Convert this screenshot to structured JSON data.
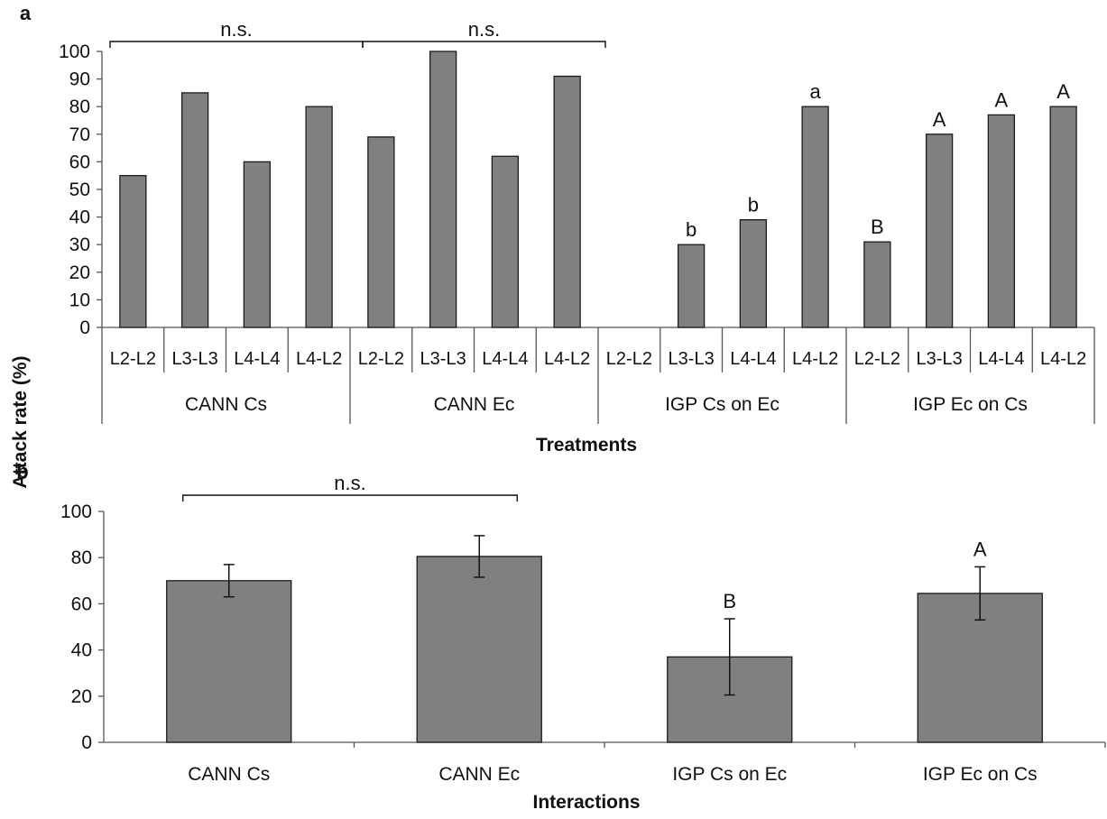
{
  "colors": {
    "bar": "#808080",
    "bar_stroke": "#1a1a1a",
    "axis": "#555555",
    "text": "#111111"
  },
  "shared_ylabel": "Attack rate (%)",
  "chart_data": [
    {
      "panel": "a",
      "type": "bar",
      "xlabel": "Treatments",
      "ylabel": "Attack rate (%)",
      "ylim": [
        0,
        100
      ],
      "yticks": [
        0,
        10,
        20,
        30,
        40,
        50,
        60,
        70,
        80,
        90,
        100
      ],
      "grid": false,
      "groups": [
        {
          "name": "CANN Cs",
          "categories": [
            "L2-L2",
            "L3-L3",
            "L4-L4",
            "L4-L2"
          ],
          "values": [
            55,
            85,
            60,
            80
          ],
          "letters": [
            "",
            "",
            "",
            ""
          ]
        },
        {
          "name": "CANN Ec",
          "categories": [
            "L2-L2",
            "L3-L3",
            "L4-L4",
            "L4-L2"
          ],
          "values": [
            69,
            100,
            62,
            91
          ],
          "letters": [
            "",
            "",
            "",
            ""
          ]
        },
        {
          "name": "IGP Cs on Ec",
          "categories": [
            "L2-L2",
            "L3-L3",
            "L4-L4",
            "L4-L2"
          ],
          "values": [
            0,
            30,
            39,
            80
          ],
          "letters": [
            "",
            "b",
            "b",
            "a"
          ]
        },
        {
          "name": "IGP Ec on Cs",
          "categories": [
            "L2-L2",
            "L3-L3",
            "L4-L4",
            "L4-L2"
          ],
          "values": [
            31,
            70,
            77,
            80
          ],
          "letters": [
            "B",
            "A",
            "A",
            "A"
          ]
        }
      ],
      "brackets": [
        {
          "from_group": 0,
          "to_group": 0,
          "label": "n.s."
        },
        {
          "from_group": 1,
          "to_group": 1,
          "label": "n.s."
        }
      ]
    },
    {
      "panel": "b",
      "type": "bar",
      "xlabel": "Interactions",
      "ylabel": "Attack rate (%)",
      "ylim": [
        0,
        100
      ],
      "yticks": [
        0,
        20,
        40,
        60,
        80,
        100
      ],
      "grid": false,
      "categories": [
        "CANN Cs",
        "CANN Ec",
        "IGP Cs on Ec",
        "IGP Ec on Cs"
      ],
      "values": [
        70,
        80.5,
        37,
        64.5
      ],
      "errors": [
        7,
        9,
        16.5,
        11.5
      ],
      "letters": [
        "",
        "",
        "B",
        "A"
      ],
      "brackets": [
        {
          "from": 0,
          "to": 1,
          "label": "n.s."
        }
      ]
    }
  ]
}
